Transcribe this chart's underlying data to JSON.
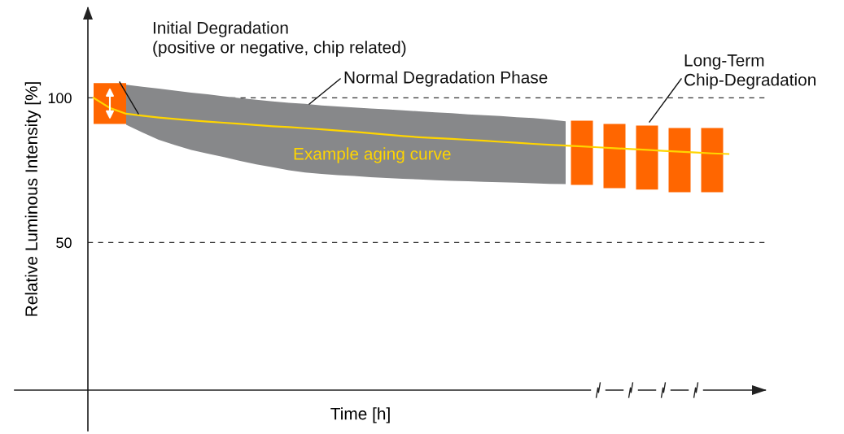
{
  "chart_data": {
    "type": "line",
    "ylabel": "Relative Luminous Intensity [%]",
    "xlabel": "Time [h]",
    "categories": [
      null,
      null,
      null,
      null,
      null,
      null,
      null,
      null,
      null,
      null,
      null,
      null,
      null,
      null,
      null,
      null,
      null,
      null,
      null,
      null,
      null,
      null,
      null,
      null,
      null,
      null,
      null,
      null,
      null,
      null,
      null,
      null,
      null,
      null,
      null,
      null,
      null,
      null,
      null,
      null
    ],
    "ylim": [
      -1,
      131
    ],
    "yticks": [
      50,
      100
    ],
    "ref_lines": [
      {
        "axis": "y",
        "value": 100,
        "color": "#333333",
        "line_style": "dashed"
      },
      {
        "axis": "y",
        "value": 50,
        "color": "#333333",
        "line_style": "dashed"
      }
    ],
    "series": [
      {
        "type": "bar",
        "color": "#ff6600",
        "base": [
          null,
          91,
          null,
          null,
          null,
          null,
          null,
          null,
          null,
          null,
          null,
          null,
          null,
          null,
          null,
          null,
          null,
          null,
          null,
          null,
          null,
          null,
          null,
          null,
          null,
          null,
          null,
          null,
          null,
          null,
          69.9,
          null,
          68.8,
          null,
          68.3,
          null,
          67.4,
          null,
          67.4,
          null
        ],
        "values": [
          null,
          14.1,
          null,
          null,
          null,
          null,
          null,
          null,
          null,
          null,
          null,
          null,
          null,
          null,
          null,
          null,
          null,
          null,
          null,
          null,
          null,
          null,
          null,
          null,
          null,
          null,
          null,
          null,
          null,
          null,
          22.2,
          null,
          22.2,
          null,
          22.1,
          null,
          22.2,
          null,
          22.2,
          null
        ]
      },
      {
        "color": "#ffd500",
        "values": [
          100,
          96.5,
          94.5,
          93.8,
          93.2,
          92.7,
          92.2,
          91.8,
          91.4,
          91,
          90.6,
          90.2,
          89.9,
          89.5,
          89.1,
          88.7,
          88.3,
          87.8,
          87.3,
          86.8,
          86.4,
          86.1,
          85.8,
          85.5,
          85.2,
          84.8,
          84.5,
          84.1,
          83.8,
          83.5,
          83.2,
          82.9,
          82.6,
          82.3,
          82,
          81.7,
          81.4,
          81.1,
          80.8,
          80.6
        ],
        "lower": [
          null,
          null,
          90.7,
          88,
          85.5,
          83.7,
          82,
          80.7,
          79.5,
          78.2,
          77,
          76,
          75,
          74.2,
          73.7,
          73.3,
          73,
          72.6,
          72.3,
          72,
          71.8,
          71.5,
          71.3,
          71.2,
          71,
          70.8,
          70.7,
          70.5,
          70.3,
          70.2,
          null,
          null,
          null,
          null,
          null,
          null,
          null,
          null,
          null,
          null
        ],
        "upper": [
          null,
          null,
          104.5,
          103.8,
          103.2,
          102.5,
          101.8,
          101.2,
          100.5,
          99.9,
          99.3,
          98.8,
          98.3,
          97.9,
          97.4,
          97,
          96.7,
          96.3,
          96,
          95.7,
          95.3,
          95,
          94.7,
          94.3,
          94,
          93.7,
          93.3,
          93,
          92.5,
          91.9,
          null,
          null,
          null,
          null,
          null,
          null,
          null,
          null,
          null,
          null
        ]
      }
    ],
    "annotations": [
      "Initial Degradation\n(positive or negative, chip related)",
      "Normal Degradation Phase",
      "Long-Term\nChip-Degradation",
      "Example aging curve"
    ]
  }
}
